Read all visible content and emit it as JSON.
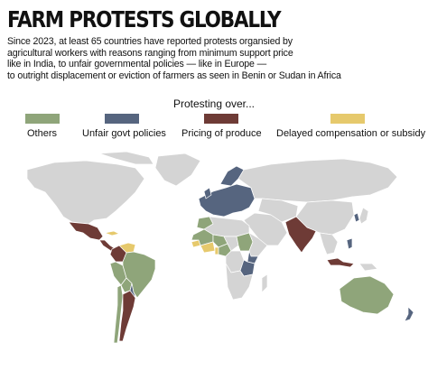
{
  "title": "FARM PROTESTS GLOBALLY",
  "subtitle_lines": [
    "Since 2023, at least 65 countries have reported protests organsied by",
    "agricultural workers with reasons ranging from minimum support price",
    "like in India, to unfair governmental policies — like in Europe —",
    "to outright displacement or eviction of farmers as seen in Benin or Sudan in Africa"
  ],
  "legend": {
    "title": "Protesting over...",
    "items": [
      {
        "label": "Others",
        "color": "#8fa57a"
      },
      {
        "label": "Unfair govt policies",
        "color": "#56657f"
      },
      {
        "label": "Pricing of produce",
        "color": "#6e3b36"
      },
      {
        "label": "Delayed compensation or subsidy",
        "color": "#e6c96c"
      }
    ]
  },
  "map": {
    "base_color": "#d4d4d4",
    "categories_by_region": {
      "north_america": "none",
      "greenland": "none",
      "mexico": "pricing",
      "central_america": "pricing",
      "cuba": "delayed",
      "venezuela": "delayed",
      "colombia": "pricing",
      "peru": "others",
      "brazil": "others",
      "bolivia": "others",
      "paraguay": "policies",
      "chile": "others",
      "argentina": "pricing",
      "europe": "policies",
      "russia": "none",
      "morocco": "others",
      "west_africa": "others",
      "senegal": "delayed",
      "mali_niger": "others",
      "nigeria": "others",
      "benin": "delayed",
      "chad": "none",
      "sudan": "others",
      "ethiopia": "none",
      "kenya": "policies",
      "tanzania": "policies",
      "drc": "none",
      "southern_africa": "none",
      "madagascar": "none",
      "middle_east": "none",
      "central_asia": "none",
      "india": "pricing",
      "china": "none",
      "korea": "policies",
      "japan": "none",
      "southeast_asia": "none",
      "philippines": "policies",
      "indonesia": "pricing",
      "australia": "others",
      "new_zealand": "policies"
    }
  }
}
